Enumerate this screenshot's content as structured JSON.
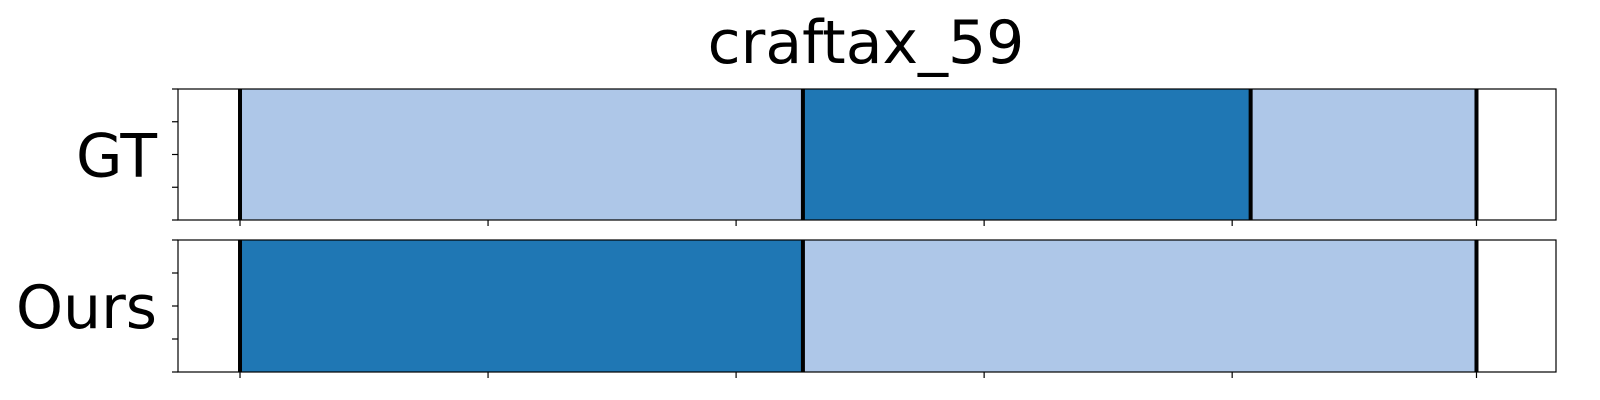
{
  "chart_data": {
    "type": "segment-timeline",
    "title": "craftax_59",
    "xlim": [
      0,
      1
    ],
    "grid": false,
    "colors": {
      "light": "#aec7e8",
      "dark": "#1f77b4",
      "boundary": "#000000"
    },
    "rows": [
      {
        "label": "GT",
        "segments": [
          {
            "start": 0.045,
            "end": 0.4535,
            "color": "light"
          },
          {
            "start": 0.4535,
            "end": 0.7784,
            "color": "dark"
          },
          {
            "start": 0.7784,
            "end": 0.9423,
            "color": "light"
          }
        ],
        "boundaries": [
          0.045,
          0.4535,
          0.7784,
          0.9423
        ]
      },
      {
        "label": "Ours",
        "segments": [
          {
            "start": 0.045,
            "end": 0.4535,
            "color": "dark"
          },
          {
            "start": 0.4535,
            "end": 0.9423,
            "color": "light"
          }
        ],
        "boundaries": [
          0.045,
          0.4535,
          0.9423
        ]
      }
    ],
    "x_ticks": [
      0.045,
      0.225,
      0.405,
      0.585,
      0.765,
      0.9423
    ]
  }
}
